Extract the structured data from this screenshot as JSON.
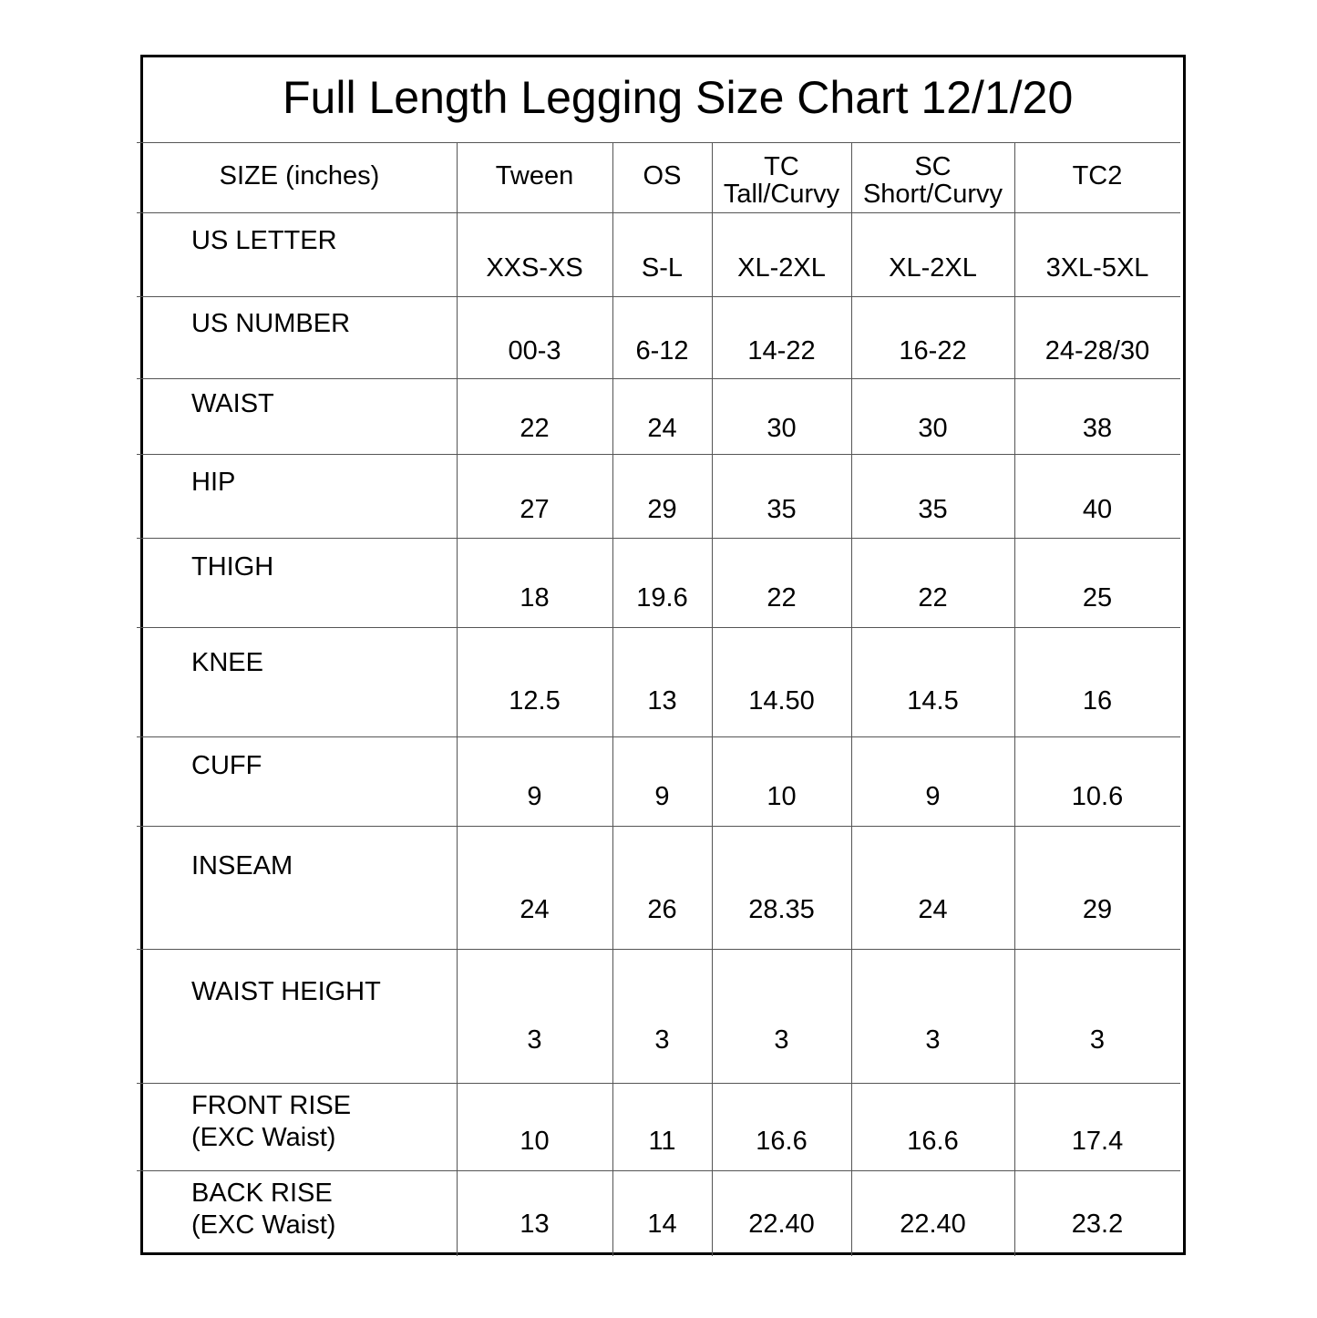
{
  "title": "Full Length Legging Size Chart 12/1/20",
  "table": {
    "columns": [
      "SIZE (inches)",
      "Tween",
      "OS",
      "TC\nTall/Curvy",
      "SC\nShort/Curvy",
      "TC2"
    ],
    "rows": [
      {
        "label": "US LETTER",
        "values": [
          "XXS-XS",
          "S-L",
          "XL-2XL",
          "XL-2XL",
          "3XL-5XL"
        ]
      },
      {
        "label": "US NUMBER",
        "values": [
          "00-3",
          "6-12",
          "14-22",
          "16-22",
          "24-28/30"
        ]
      },
      {
        "label": "WAIST",
        "values": [
          "22",
          "24",
          "30",
          "30",
          "38"
        ]
      },
      {
        "label": "HIP",
        "values": [
          "27",
          "29",
          "35",
          "35",
          "40"
        ]
      },
      {
        "label": "THIGH",
        "values": [
          "18",
          "19.6",
          "22",
          "22",
          "25"
        ]
      },
      {
        "label": "KNEE",
        "values": [
          "12.5",
          "13",
          "14.50",
          "14.5",
          "16"
        ]
      },
      {
        "label": "CUFF",
        "values": [
          "9",
          "9",
          "10",
          "9",
          "10.6"
        ]
      },
      {
        "label": "INSEAM",
        "values": [
          "24",
          "26",
          "28.35",
          "24",
          "29"
        ]
      },
      {
        "label": "WAIST HEIGHT",
        "values": [
          "3",
          "3",
          "3",
          "3",
          "3"
        ]
      },
      {
        "label": "FRONT RISE\n(EXC Waist)",
        "values": [
          "10",
          "11",
          "16.6",
          "16.6",
          "17.4"
        ]
      },
      {
        "label": "BACK RISE\n(EXC Waist)",
        "values": [
          "13",
          "14",
          "22.40",
          "22.40",
          "23.2"
        ]
      }
    ]
  }
}
